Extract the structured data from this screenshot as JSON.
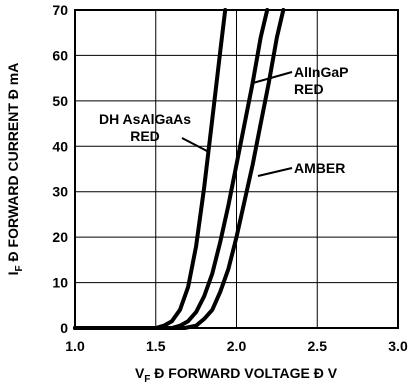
{
  "chart_data": {
    "type": "line",
    "xlim": [
      1.0,
      3.0
    ],
    "ylim": [
      0,
      70
    ],
    "x_ticks": [
      1.0,
      1.5,
      2.0,
      2.5,
      3.0
    ],
    "x_tick_labels": [
      "1.0",
      "1.5",
      "2.0",
      "2.5",
      "3.0"
    ],
    "y_ticks": [
      0,
      10,
      20,
      30,
      40,
      50,
      60,
      70
    ],
    "y_tick_labels": [
      "0",
      "10",
      "20",
      "30",
      "40",
      "50",
      "60",
      "70"
    ],
    "grid": true,
    "xlabel": {
      "v": "V",
      "sub": "F",
      "rest": " Ð FORWARD VOLTAGE Ð V"
    },
    "ylabel": {
      "v": "I",
      "sub": "F",
      "rest": " Ð FORWARD CURRENT Ð mA"
    },
    "series": [
      {
        "name": "DH AsAlGaAs RED",
        "label_lines": [
          "DH AsAlGaAs",
          "RED"
        ],
        "x": [
          1.0,
          1.5,
          1.55,
          1.6,
          1.65,
          1.7,
          1.75,
          1.8,
          1.85,
          1.9,
          1.93
        ],
        "y": [
          0,
          0,
          0.5,
          1.5,
          4,
          9,
          18,
          31,
          46,
          61,
          70
        ]
      },
      {
        "name": "AlInGaP RED",
        "label_lines": [
          "AlInGaP",
          "RED"
        ],
        "x": [
          1.0,
          1.6,
          1.65,
          1.7,
          1.75,
          1.8,
          1.85,
          1.9,
          1.95,
          2.0,
          2.05,
          2.1,
          2.15,
          2.19
        ],
        "y": [
          0,
          0,
          0.5,
          1.5,
          3.5,
          7,
          12,
          19,
          27,
          36,
          45,
          54,
          64,
          70
        ]
      },
      {
        "name": "AMBER",
        "label_lines": [
          "AMBER"
        ],
        "x": [
          1.0,
          1.68,
          1.75,
          1.8,
          1.85,
          1.9,
          1.95,
          2.0,
          2.05,
          2.1,
          2.15,
          2.2,
          2.25,
          2.29
        ],
        "y": [
          0,
          0,
          0.5,
          2,
          4,
          8,
          13,
          20,
          28,
          36,
          45,
          54,
          64,
          70
        ]
      }
    ]
  }
}
